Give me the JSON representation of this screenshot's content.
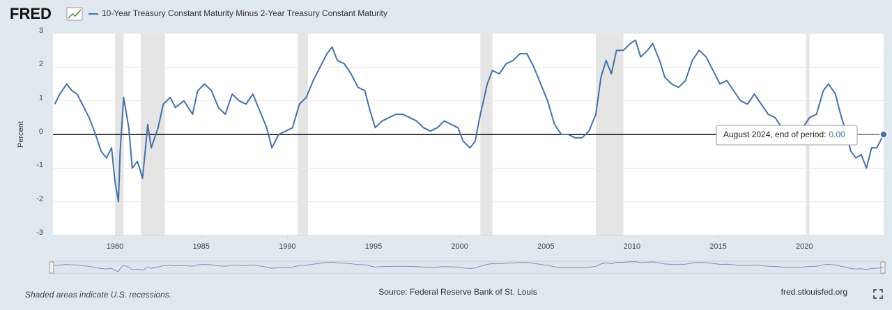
{
  "logo": "FRED",
  "chart_data": {
    "type": "line",
    "y_label": "Percent",
    "xlim": [
      1976.4,
      2024.6
    ],
    "ylim": [
      -3,
      3
    ],
    "xticks": [
      1980,
      1985,
      1990,
      1995,
      2000,
      2005,
      2010,
      2015,
      2020
    ],
    "yticks": [
      -3,
      -2,
      -1,
      0,
      1,
      2,
      3
    ],
    "grid": true,
    "hline": 0,
    "recessions": [
      [
        1980.0,
        1980.5
      ],
      [
        1981.5,
        1982.9
      ],
      [
        1990.6,
        1991.2
      ],
      [
        2001.2,
        2001.9
      ],
      [
        2007.9,
        2009.5
      ],
      [
        2020.1,
        2020.3
      ]
    ],
    "x": [
      1976.5,
      1976.8,
      1977.2,
      1977.5,
      1977.8,
      1978.2,
      1978.5,
      1978.8,
      1979.2,
      1979.5,
      1979.8,
      1980.0,
      1980.2,
      1980.3,
      1980.5,
      1980.8,
      1981.0,
      1981.3,
      1981.6,
      1981.9,
      1982.1,
      1982.5,
      1982.8,
      1983.2,
      1983.5,
      1984.0,
      1984.5,
      1984.8,
      1985.2,
      1985.6,
      1986.0,
      1986.4,
      1986.8,
      1987.2,
      1987.6,
      1988.0,
      1988.4,
      1988.8,
      1989.1,
      1989.5,
      1989.9,
      1990.3,
      1990.7,
      1991.1,
      1991.5,
      1991.9,
      1992.3,
      1992.6,
      1992.9,
      1993.3,
      1993.7,
      1994.1,
      1994.5,
      1994.8,
      1995.1,
      1995.5,
      1995.9,
      1996.3,
      1996.7,
      1997.1,
      1997.5,
      1997.9,
      1998.3,
      1998.7,
      1999.1,
      1999.5,
      1999.9,
      2000.2,
      2000.6,
      2000.9,
      2001.2,
      2001.6,
      2001.9,
      2002.3,
      2002.7,
      2003.1,
      2003.5,
      2003.9,
      2004.3,
      2004.7,
      2005.1,
      2005.5,
      2005.9,
      2006.3,
      2006.7,
      2007.1,
      2007.5,
      2007.9,
      2008.2,
      2008.5,
      2008.8,
      2009.1,
      2009.5,
      2009.9,
      2010.2,
      2010.5,
      2010.9,
      2011.2,
      2011.6,
      2011.9,
      2012.3,
      2012.7,
      2013.1,
      2013.5,
      2013.9,
      2014.3,
      2014.7,
      2015.1,
      2015.5,
      2015.9,
      2016.3,
      2016.7,
      2017.1,
      2017.5,
      2017.9,
      2018.3,
      2018.7,
      2019.1,
      2019.5,
      2019.9,
      2020.3,
      2020.7,
      2021.1,
      2021.4,
      2021.8,
      2022.1,
      2022.4,
      2022.7,
      2023.0,
      2023.3,
      2023.6,
      2023.9,
      2024.2,
      2024.6
    ],
    "series": [
      {
        "name": "10-Year Treasury Constant Maturity Minus 2-Year Treasury Constant Maturity",
        "color": "#4572a7",
        "values": [
          0.9,
          1.2,
          1.5,
          1.3,
          1.2,
          0.8,
          0.5,
          0.1,
          -0.5,
          -0.7,
          -0.4,
          -1.4,
          -2.0,
          -0.5,
          1.1,
          0.2,
          -1.0,
          -0.8,
          -1.3,
          0.3,
          -0.4,
          0.2,
          0.9,
          1.1,
          0.8,
          1.0,
          0.6,
          1.3,
          1.5,
          1.3,
          0.8,
          0.6,
          1.2,
          1.0,
          0.9,
          1.2,
          0.7,
          0.2,
          -0.4,
          0.0,
          0.1,
          0.2,
          0.9,
          1.1,
          1.6,
          2.0,
          2.4,
          2.6,
          2.2,
          2.1,
          1.8,
          1.4,
          1.3,
          0.7,
          0.2,
          0.4,
          0.5,
          0.6,
          0.6,
          0.5,
          0.4,
          0.2,
          0.1,
          0.2,
          0.4,
          0.3,
          0.2,
          -0.2,
          -0.4,
          -0.2,
          0.6,
          1.5,
          1.9,
          1.8,
          2.1,
          2.2,
          2.4,
          2.4,
          2.0,
          1.5,
          1.0,
          0.3,
          0.0,
          0.0,
          -0.1,
          -0.1,
          0.1,
          0.6,
          1.7,
          2.2,
          1.8,
          2.5,
          2.5,
          2.7,
          2.8,
          2.3,
          2.5,
          2.7,
          2.2,
          1.7,
          1.5,
          1.4,
          1.6,
          2.2,
          2.5,
          2.3,
          1.9,
          1.5,
          1.6,
          1.3,
          1.0,
          0.9,
          1.2,
          0.9,
          0.6,
          0.5,
          0.2,
          0.2,
          0.1,
          0.2,
          0.5,
          0.6,
          1.3,
          1.5,
          1.2,
          0.6,
          0.1,
          -0.5,
          -0.7,
          -0.6,
          -1.0,
          -0.4,
          -0.4,
          0.0
        ]
      }
    ],
    "tooltip": {
      "text": "August 2024, end of period:",
      "value": "0.00"
    },
    "note": "Shaded areas indicate U.S. recessions.",
    "source": "Source: Federal Reserve Bank of St. Louis",
    "site": "fred.stlouisfed.org"
  }
}
